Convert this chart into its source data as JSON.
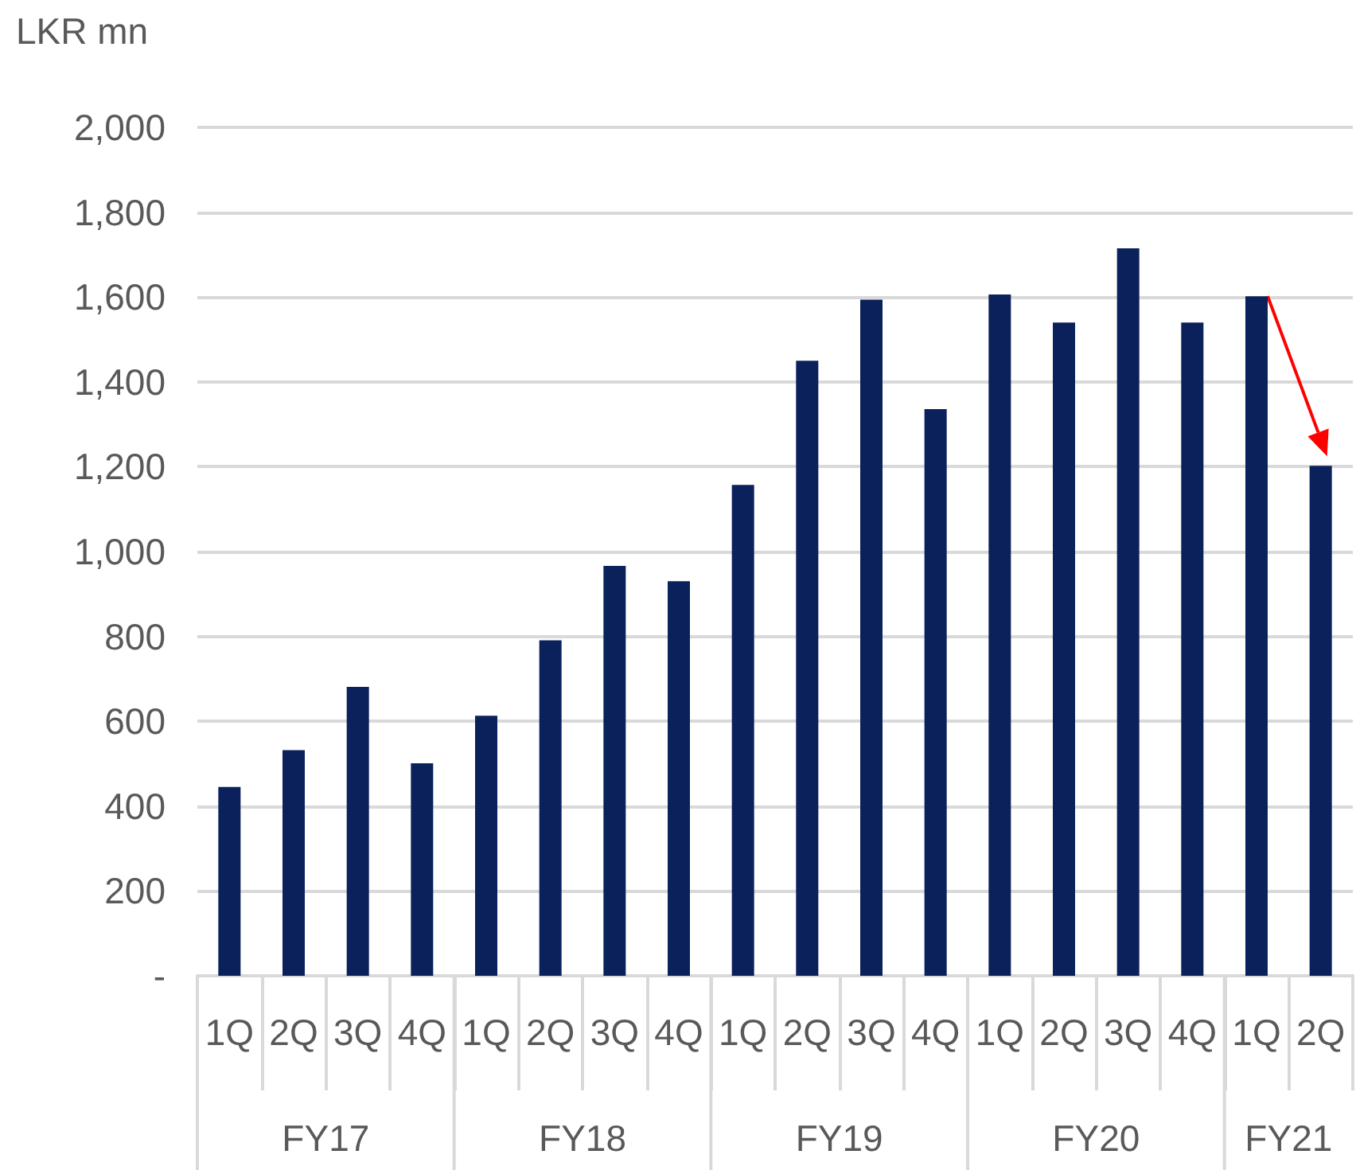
{
  "chart_data": {
    "type": "bar",
    "ylabel": "LKR mn",
    "categories": [
      "1Q",
      "2Q",
      "3Q",
      "4Q",
      "1Q",
      "2Q",
      "3Q",
      "4Q",
      "1Q",
      "2Q",
      "3Q",
      "4Q",
      "1Q",
      "2Q",
      "3Q",
      "4Q",
      "1Q",
      "2Q"
    ],
    "values": [
      445,
      532,
      681,
      501,
      613,
      791,
      966,
      930,
      1157,
      1450,
      1594,
      1336,
      1606,
      1540,
      1715,
      1540,
      1602,
      1202
    ],
    "color": "#0a215c",
    "ylim": [
      0,
      2000
    ],
    "yticks": [
      {
        "value": 0,
        "label": "-"
      },
      200,
      400,
      600,
      800,
      {
        "value": 1000,
        "label": "1,000"
      },
      {
        "value": 1200,
        "label": "1,200"
      },
      {
        "value": 1400,
        "label": "1,400"
      },
      {
        "value": 1600,
        "label": "1,600"
      },
      {
        "value": 1800,
        "label": "1,800"
      },
      {
        "value": 2000,
        "label": "2,000"
      }
    ],
    "annotations": [
      "FY17",
      "FY18",
      "FY19",
      "FY20",
      "FY21"
    ],
    "grid": "y"
  }
}
